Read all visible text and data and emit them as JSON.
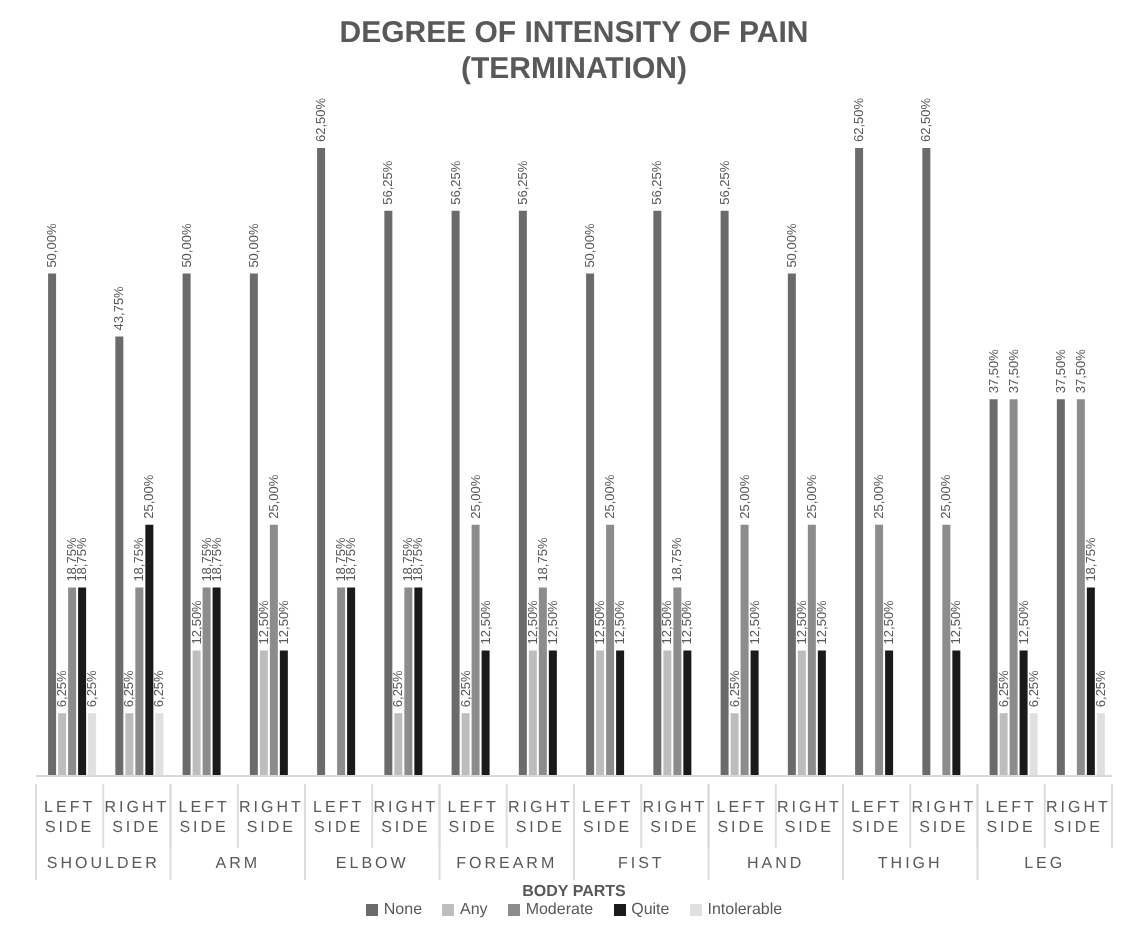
{
  "chart_data": {
    "type": "bar",
    "title": "DEGREE OF INTENSITY OF PAIN (TERMINATION)",
    "xlabel": "BODY PARTS",
    "categories": [
      "LEFT SIDE",
      "RIGHT SIDE",
      "LEFT SIDE",
      "RIGHT SIDE",
      "LEFT SIDE",
      "RIGHT SIDE",
      "LEFT SIDE",
      "RIGHT SIDE",
      "LEFT SIDE",
      "RIGHT SIDE",
      "LEFT SIDE",
      "RIGHT SIDE",
      "LEFT SIDE",
      "RIGHT SIDE",
      "LEFT SIDE",
      "RIGHT SIDE"
    ],
    "annotations": [
      "SHOULDER",
      "ARM",
      "ELBOW",
      "FOREARM",
      "FIST",
      "HAND",
      "THIGH",
      "LEG"
    ],
    "series": [
      {
        "name": "None",
        "color": "#6b6b6b",
        "values": [
          50,
          43.75,
          50,
          50,
          62.5,
          56.25,
          56.25,
          56.25,
          50,
          56.25,
          56.25,
          50,
          62.5,
          62.5,
          37.5,
          37.5
        ],
        "value_labels": [
          "50,00%",
          "43,75%",
          "50,00%",
          "50,00%",
          "62,50%",
          "56,25%",
          "56,25%",
          "56,25%",
          "50,00%",
          "56,25%",
          "56,25%",
          "50,00%",
          "62,50%",
          "62,50%",
          "37,50%",
          "37,50%"
        ]
      },
      {
        "name": "Any",
        "color": "#bdbdbd",
        "values": [
          6.25,
          6.25,
          12.5,
          12.5,
          null,
          6.25,
          6.25,
          12.5,
          12.5,
          12.5,
          6.25,
          12.5,
          null,
          null,
          6.25,
          null
        ],
        "value_labels": [
          "6,25%",
          "6,25%",
          "12,50%",
          "12,50%",
          null,
          "6,25%",
          "6,25%",
          "12,50%",
          "12,50%",
          "12,50%",
          "6,25%",
          "12,50%",
          null,
          null,
          "6,25%",
          null
        ]
      },
      {
        "name": "Moderate",
        "color": "#8c8c8c",
        "values": [
          18.75,
          18.75,
          18.75,
          25,
          18.75,
          18.75,
          25,
          18.75,
          25,
          18.75,
          25,
          25,
          25,
          25,
          37.5,
          37.5
        ],
        "value_labels": [
          "18,75%",
          "18,75%",
          "18,75%",
          "25,00%",
          "18,75%",
          "18,75%",
          "25,00%",
          "18,75%",
          "25,00%",
          "18,75%",
          "25,00%",
          "25,00%",
          "25,00%",
          "25,00%",
          "37,50%",
          "37,50%"
        ]
      },
      {
        "name": "Quite",
        "color": "#1a1a1a",
        "values": [
          18.75,
          25,
          18.75,
          12.5,
          18.75,
          18.75,
          12.5,
          12.5,
          12.5,
          12.5,
          12.5,
          12.5,
          12.5,
          12.5,
          12.5,
          18.75
        ],
        "value_labels": [
          "18,75%",
          "25,00%",
          "18,75%",
          "12,50%",
          "18,75%",
          "18,75%",
          "12,50%",
          "12,50%",
          "12,50%",
          "12,50%",
          "12,50%",
          "12,50%",
          "12,50%",
          "12,50%",
          "12,50%",
          "18,75%"
        ]
      },
      {
        "name": "Intolerable",
        "color": "#e0e0e0",
        "values": [
          6.25,
          6.25,
          null,
          null,
          null,
          null,
          null,
          null,
          null,
          null,
          null,
          null,
          null,
          null,
          6.25,
          6.25
        ],
        "value_labels": [
          "6,25%",
          "6,25%",
          null,
          null,
          null,
          null,
          null,
          null,
          null,
          null,
          null,
          null,
          null,
          null,
          "6,25%",
          "6,25%"
        ]
      }
    ],
    "legend": "bottom"
  }
}
